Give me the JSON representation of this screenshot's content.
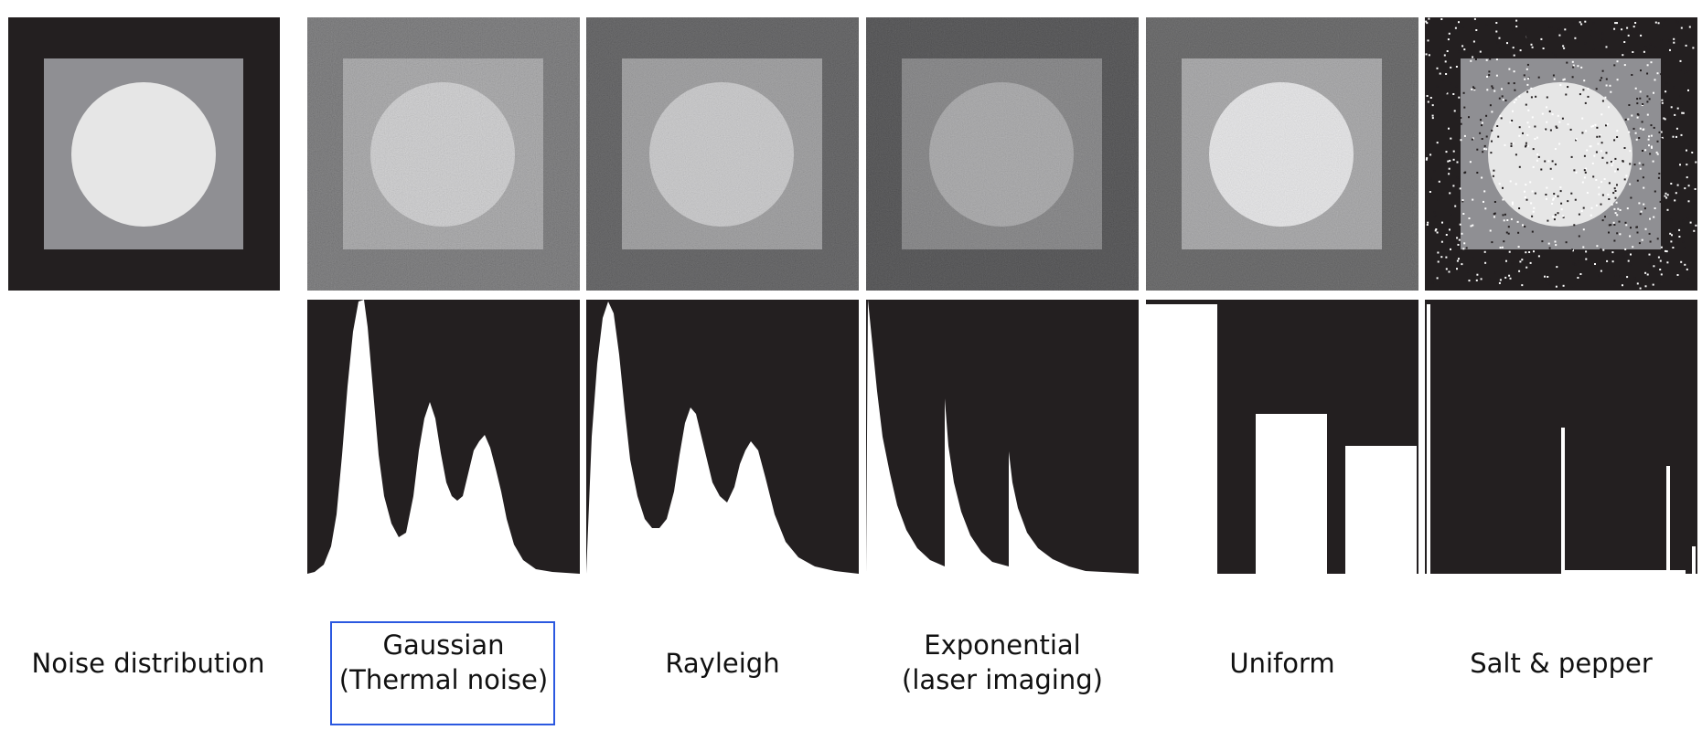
{
  "row_label": "Noise distribution",
  "noise_types": [
    {
      "id": "gaussian",
      "line1": "Gaussian",
      "line2": "(Thermal noise)",
      "highlighted": true
    },
    {
      "id": "rayleigh",
      "line1": "Rayleigh",
      "line2": ""
    },
    {
      "id": "exponential",
      "line1": "Exponential",
      "line2": "(laser imaging)"
    },
    {
      "id": "uniform",
      "line1": "Uniform",
      "line2": ""
    },
    {
      "id": "salt-pepper",
      "line1": "Salt & pepper",
      "line2": ""
    }
  ],
  "colors": {
    "background": "#231f20",
    "highlight_border": "#2b58e0",
    "histogram_fill": "#ffffff"
  }
}
